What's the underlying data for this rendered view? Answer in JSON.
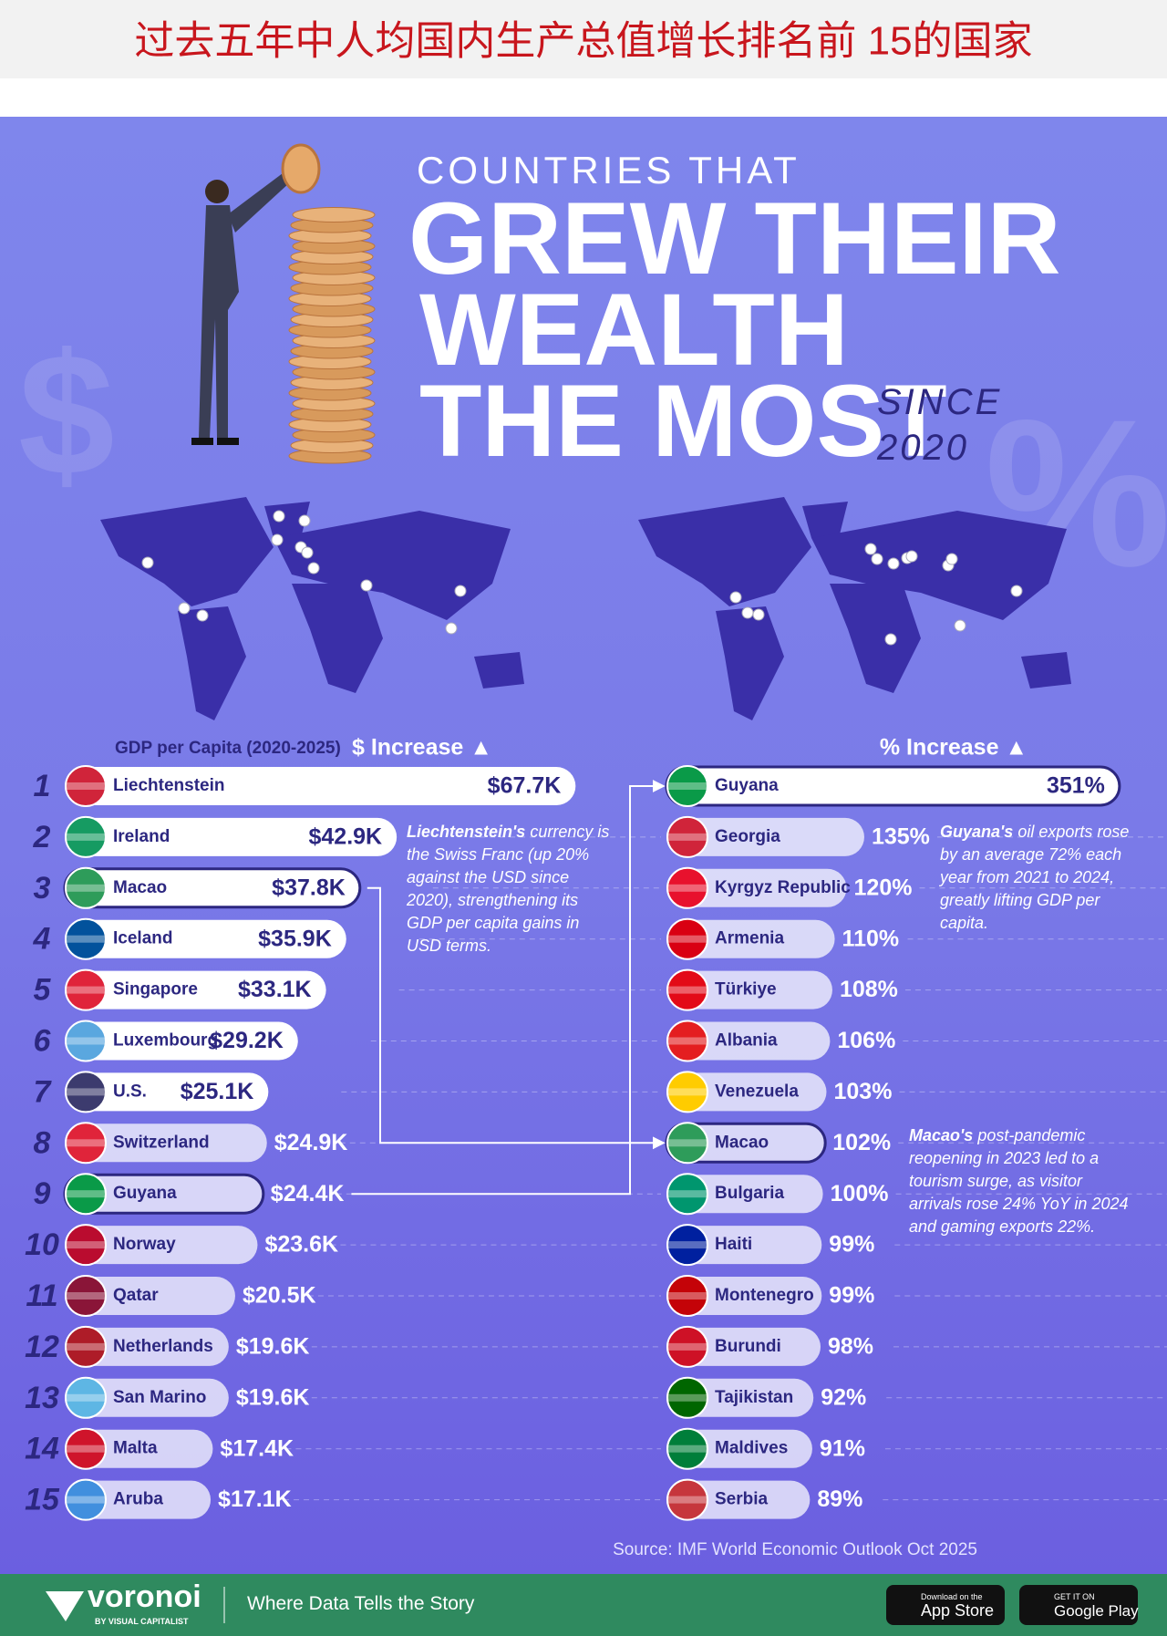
{
  "banner_title": "过去五年中人均国内生产总值增长排名前 15的国家",
  "header": {
    "kicker": "COUNTRIES THAT",
    "title_lines": [
      "GREW THEIR",
      "WEALTH",
      "THE MOST"
    ],
    "since": [
      "SINCE",
      "2020"
    ]
  },
  "ranks": [
    "1",
    "2",
    "3",
    "4",
    "5",
    "6",
    "7",
    "8",
    "9",
    "10",
    "11",
    "12",
    "13",
    "14",
    "15"
  ],
  "chart_data": [
    {
      "type": "bar",
      "orientation": "horizontal",
      "subtitle": "GDP per Capita (2020-2025)",
      "title": "$ Increase ▲",
      "categories": [
        "Liechtenstein",
        "Ireland",
        "Macao",
        "Iceland",
        "Singapore",
        "Luxembourg",
        "U.S.",
        "Switzerland",
        "Guyana",
        "Norway",
        "Qatar",
        "Netherlands",
        "San Marino",
        "Malta",
        "Aruba"
      ],
      "values": [
        67.7,
        42.9,
        37.8,
        35.9,
        33.1,
        29.2,
        25.1,
        24.9,
        24.4,
        23.6,
        20.5,
        19.6,
        19.6,
        17.4,
        17.1
      ],
      "value_labels": [
        "$67.7K",
        "$42.9K",
        "$37.8K",
        "$35.9K",
        "$33.1K",
        "$29.2K",
        "$25.1K",
        "$24.9K",
        "$24.4K",
        "$23.6K",
        "$20.5K",
        "$19.6K",
        "$19.6K",
        "$17.4K",
        "$17.1K"
      ],
      "highlight": [
        2,
        8
      ],
      "color": "#ffffff"
    },
    {
      "type": "bar",
      "orientation": "horizontal",
      "title": "% Increase ▲",
      "categories": [
        "Guyana",
        "Georgia",
        "Kyrgyz Republic",
        "Armenia",
        "Türkiye",
        "Albania",
        "Venezuela",
        "Macao",
        "Bulgaria",
        "Haiti",
        "Montenegro",
        "Burundi",
        "Tajikistan",
        "Maldives",
        "Serbia"
      ],
      "values": [
        351,
        135,
        120,
        110,
        108,
        106,
        103,
        102,
        100,
        99,
        99,
        98,
        92,
        91,
        89
      ],
      "value_labels": [
        "351%",
        "135%",
        "120%",
        "110%",
        "108%",
        "106%",
        "103%",
        "102%",
        "100%",
        "99%",
        "99%",
        "98%",
        "92%",
        "91%",
        "89%"
      ],
      "highlight": [
        0,
        7
      ],
      "color": "#ffffff"
    }
  ],
  "annotations": [
    {
      "bold": "Liechtenstein's",
      "text": "currency is the Swiss Franc (up 20% against the USD since 2020), strengthening its GDP per capita gains in USD terms."
    },
    {
      "bold": "Guyana's",
      "text": "oil exports rose by an average 72% each year from 2021 to 2024, greatly lifting GDP per capita."
    },
    {
      "bold": "Macao's",
      "text": "post-pandemic reopening in 2023 led to a tourism surge, as visitor arrivals rose 24% YoY in 2024 and gaming exports 22%."
    }
  ],
  "source": "Source: IMF World Economic Outlook Oct 2025",
  "footer": {
    "brand": "voronoi",
    "brand_sub": "BY VISUAL CAPITALIST",
    "tagline": "Where Data Tells the Story",
    "app_store": [
      "Download on the",
      "App Store"
    ],
    "google_play": [
      "GET IT ON",
      "Google Play"
    ]
  }
}
